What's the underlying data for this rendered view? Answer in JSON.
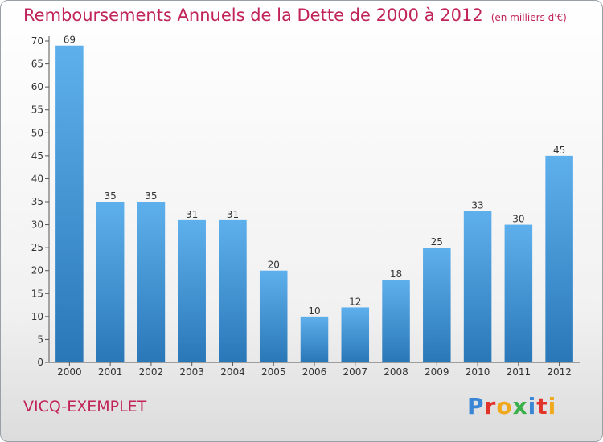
{
  "header": {
    "title": "Remboursements Annuels de la Dette de 2000 à 2012",
    "unit": "(en milliers d'€)"
  },
  "footer": {
    "location": "VICQ-EXEMPLET",
    "brand": {
      "text": "Proxiti",
      "letters": [
        {
          "char": "P",
          "color": "#3a86d6"
        },
        {
          "char": "r",
          "color": "#e2332b"
        },
        {
          "char": "o",
          "color": "#f0a81c"
        },
        {
          "char": "x",
          "color": "#3ab04a"
        },
        {
          "char": "i",
          "color": "#3a86d6"
        },
        {
          "char": "t",
          "color": "#e2332b"
        },
        {
          "char": "i",
          "color": "#f0a81c"
        }
      ]
    }
  },
  "chart_data": {
    "type": "bar",
    "title": "Remboursements Annuels de la Dette de 2000 à 2012",
    "xlabel": "",
    "ylabel": "",
    "categories": [
      "2000",
      "2001",
      "2002",
      "2003",
      "2004",
      "2005",
      "2006",
      "2007",
      "2008",
      "2009",
      "2010",
      "2011",
      "2012"
    ],
    "values": [
      69,
      35,
      35,
      31,
      31,
      20,
      10,
      12,
      18,
      25,
      33,
      30,
      45
    ],
    "ylim": [
      0,
      70
    ],
    "yticks": [
      0,
      5,
      10,
      15,
      20,
      25,
      30,
      35,
      40,
      45,
      50,
      55,
      60,
      65,
      70
    ],
    "grid": false,
    "bar_color_top": "#5eb0ec",
    "bar_color_bottom": "#2a77b8",
    "value_labels": true
  }
}
